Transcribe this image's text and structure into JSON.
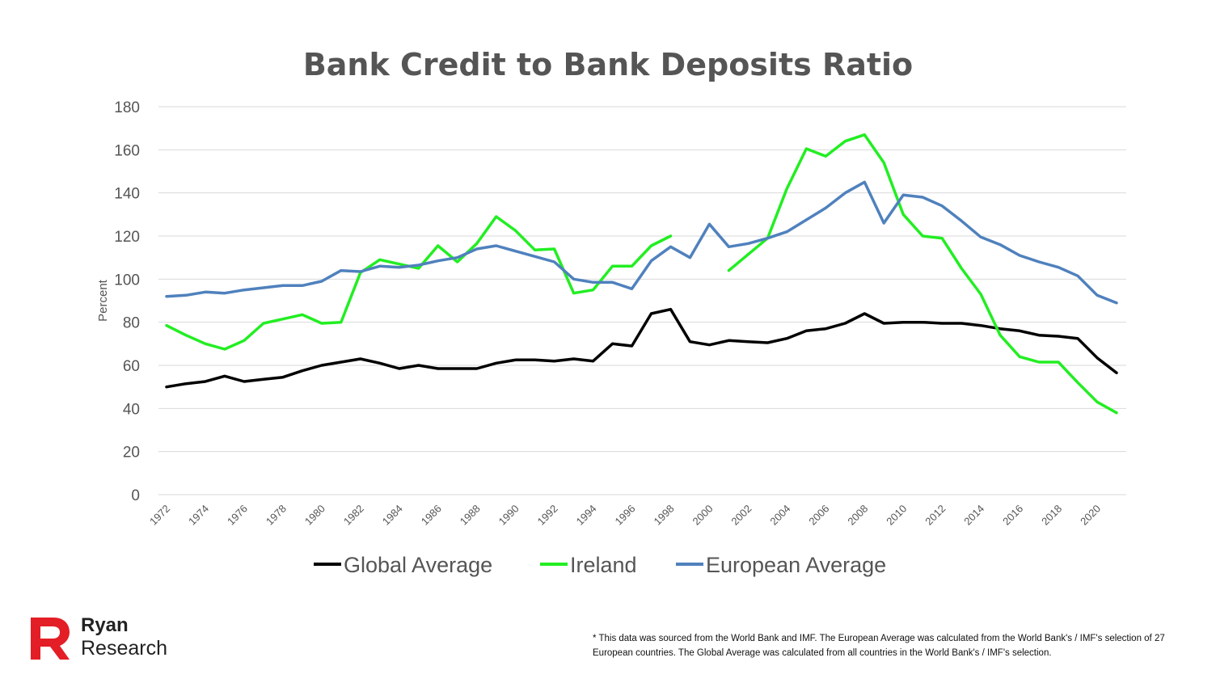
{
  "chart_data": {
    "type": "line",
    "title": "Bank Credit to Bank Deposits Ratio",
    "ylabel": "Percent",
    "xlabel": "",
    "ylim": [
      0,
      180
    ],
    "yticks": [
      0,
      20,
      40,
      60,
      80,
      100,
      120,
      140,
      160,
      180
    ],
    "x": [
      1972,
      1973,
      1974,
      1975,
      1976,
      1977,
      1978,
      1979,
      1980,
      1981,
      1982,
      1983,
      1984,
      1985,
      1986,
      1987,
      1988,
      1989,
      1990,
      1991,
      1992,
      1993,
      1994,
      1995,
      1996,
      1997,
      1998,
      1999,
      2000,
      2001,
      2002,
      2003,
      2004,
      2005,
      2006,
      2007,
      2008,
      2009,
      2010,
      2011,
      2012,
      2013,
      2014,
      2015,
      2016,
      2017,
      2018,
      2019,
      2020,
      2021
    ],
    "xtick_labels": [
      "1972",
      "1974",
      "1976",
      "1978",
      "1980",
      "1982",
      "1984",
      "1986",
      "1988",
      "1990",
      "1992",
      "1994",
      "1996",
      "1998",
      "2000",
      "2002",
      "2004",
      "2006",
      "2008",
      "2010",
      "2012",
      "2014",
      "2016",
      "2018",
      "2020"
    ],
    "grid": true,
    "legend_position": "bottom",
    "series": [
      {
        "name": "Global Average",
        "color": "#000000",
        "values": [
          50,
          51.5,
          52.5,
          55,
          52.5,
          53.5,
          54.5,
          57.5,
          60,
          61.5,
          63,
          61,
          58.5,
          60,
          58.5,
          58.5,
          58.5,
          61,
          62.5,
          62.5,
          62,
          63,
          62,
          70,
          69,
          84,
          86,
          71,
          69.5,
          71.5,
          71,
          70.5,
          72.5,
          76,
          77,
          79.5,
          84,
          79.5,
          80,
          80,
          79.5,
          79.5,
          78.5,
          77,
          76,
          74,
          73.5,
          72.5,
          63.5,
          56.5
        ]
      },
      {
        "name": "Ireland",
        "color": "#22ee22",
        "values": [
          78.5,
          74,
          70,
          67.5,
          71.5,
          79.5,
          81.5,
          83.5,
          79.5,
          80,
          103,
          109,
          107,
          105,
          115.5,
          108,
          116.5,
          129,
          122.5,
          113.5,
          114,
          93.5,
          95,
          106,
          106,
          115.5,
          120,
          null,
          null,
          104,
          111.5,
          119,
          142,
          160.5,
          157,
          164,
          167,
          154,
          130,
          120,
          119,
          105,
          93,
          74,
          64,
          61.5,
          61.5,
          52,
          43,
          38
        ]
      },
      {
        "name": "European Average",
        "color": "#4f81bd",
        "values": [
          92,
          92.5,
          94,
          93.5,
          95,
          96,
          97,
          97,
          99,
          104,
          103.5,
          106,
          105.5,
          106.5,
          108.5,
          110,
          114,
          115.5,
          113,
          110.5,
          108,
          100,
          98.5,
          98.5,
          95.5,
          108.5,
          115,
          110,
          125.5,
          115,
          116.5,
          119,
          122,
          127.5,
          133,
          140,
          145,
          126,
          139,
          138,
          134,
          127,
          119.5,
          116,
          111,
          108,
          105.5,
          101.5,
          92.5,
          89
        ]
      }
    ]
  },
  "branding": {
    "line1": "Ryan",
    "line2": "Research",
    "logo_color": "#e41e26"
  },
  "footnote": "* This data was sourced from the World Bank and IMF. The European Average was calculated from the World Bank's / IMF's selection of 27 European countries. The Global Average was calculated from all countries in the World Bank's / IMF's selection."
}
